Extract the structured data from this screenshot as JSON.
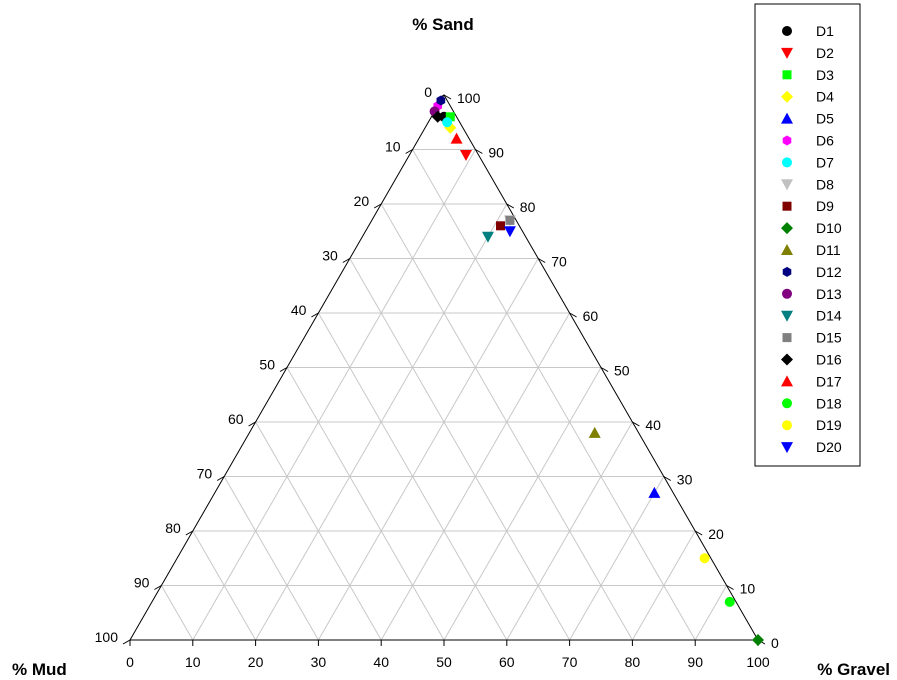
{
  "chart_data": {
    "type": "scatter",
    "subtype": "ternary",
    "title": "",
    "axes": {
      "top": "% Sand",
      "left": "% Mud",
      "right": "% Gravel"
    },
    "ticks": [
      0,
      10,
      20,
      30,
      40,
      50,
      60,
      70,
      80,
      90,
      100
    ],
    "grid": true,
    "legend_position": "right",
    "series": [
      {
        "name": "D1",
        "marker": "circle",
        "color": "#000000",
        "points": [
          {
            "sand": 96,
            "gravel": 2,
            "mud": 2
          }
        ]
      },
      {
        "name": "D2",
        "marker": "triangle-down",
        "color": "#ff0000",
        "points": [
          {
            "sand": 89,
            "gravel": 9,
            "mud": 2
          }
        ]
      },
      {
        "name": "D3",
        "marker": "square",
        "color": "#00ff00",
        "points": [
          {
            "sand": 96,
            "gravel": 3,
            "mud": 1
          }
        ]
      },
      {
        "name": "D4",
        "marker": "diamond",
        "color": "#ffff00",
        "points": [
          {
            "sand": 94,
            "gravel": 4,
            "mud": 2
          }
        ]
      },
      {
        "name": "D5",
        "marker": "triangle-up",
        "color": "#0000ff",
        "points": [
          {
            "sand": 27,
            "gravel": 70,
            "mud": 3
          }
        ]
      },
      {
        "name": "D6",
        "marker": "hexagon",
        "color": "#ff00ff",
        "points": [
          {
            "sand": 98,
            "gravel": 0,
            "mud": 2
          }
        ]
      },
      {
        "name": "D7",
        "marker": "circle",
        "color": "#00ffff",
        "points": [
          {
            "sand": 95,
            "gravel": 3,
            "mud": 2
          }
        ]
      },
      {
        "name": "D8",
        "marker": "triangle-down",
        "color": "#c0c0c0",
        "points": [
          {
            "sand": 77,
            "gravel": 22,
            "mud": 1
          }
        ]
      },
      {
        "name": "D9",
        "marker": "square",
        "color": "#800000",
        "points": [
          {
            "sand": 76,
            "gravel": 21,
            "mud": 3
          }
        ]
      },
      {
        "name": "D10",
        "marker": "diamond",
        "color": "#008000",
        "points": [
          {
            "sand": 0,
            "gravel": 100,
            "mud": 0
          }
        ]
      },
      {
        "name": "D11",
        "marker": "triangle-up",
        "color": "#808000",
        "points": [
          {
            "sand": 38,
            "gravel": 55,
            "mud": 7
          }
        ]
      },
      {
        "name": "D12",
        "marker": "hexagon",
        "color": "#000080",
        "points": [
          {
            "sand": 99,
            "gravel": 0,
            "mud": 1
          }
        ]
      },
      {
        "name": "D13",
        "marker": "circle",
        "color": "#800080",
        "points": [
          {
            "sand": 97,
            "gravel": 0,
            "mud": 3
          }
        ]
      },
      {
        "name": "D14",
        "marker": "triangle-down",
        "color": "#008080",
        "points": [
          {
            "sand": 74,
            "gravel": 20,
            "mud": 6
          }
        ]
      },
      {
        "name": "D15",
        "marker": "square",
        "color": "#808080",
        "points": [
          {
            "sand": 77,
            "gravel": 22,
            "mud": 1
          }
        ]
      },
      {
        "name": "D16",
        "marker": "diamond",
        "color": "#000000",
        "points": [
          {
            "sand": 96,
            "gravel": 1,
            "mud": 3
          }
        ]
      },
      {
        "name": "D17",
        "marker": "triangle-up",
        "color": "#ff0000",
        "points": [
          {
            "sand": 92,
            "gravel": 6,
            "mud": 2
          }
        ]
      },
      {
        "name": "D18",
        "marker": "circle",
        "color": "#00ff00",
        "points": [
          {
            "sand": 7,
            "gravel": 92,
            "mud": 1
          }
        ]
      },
      {
        "name": "D19",
        "marker": "circle",
        "color": "#ffff00",
        "points": [
          {
            "sand": 15,
            "gravel": 84,
            "mud": 1
          }
        ]
      },
      {
        "name": "D20",
        "marker": "triangle-down",
        "color": "#0000ff",
        "points": [
          {
            "sand": 75,
            "gravel": 23,
            "mud": 2
          }
        ]
      }
    ]
  }
}
